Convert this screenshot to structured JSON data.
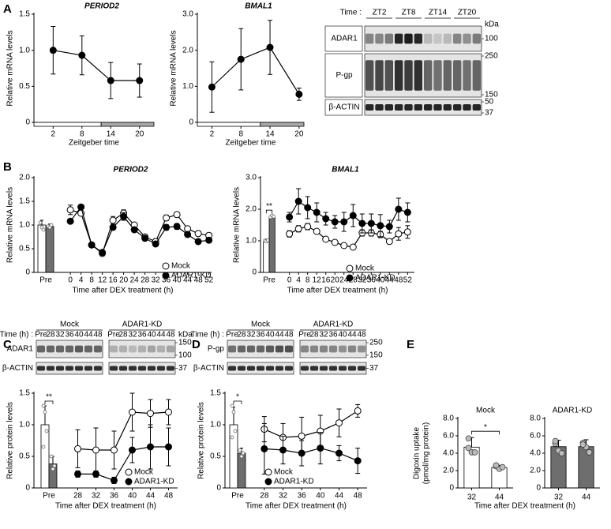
{
  "panels": [
    "A",
    "B",
    "C",
    "D",
    "E"
  ],
  "chart_data": [
    {
      "type": "line",
      "title": "PERIOD2",
      "ylabel": "Relative mRNA levels",
      "xlabel": "Zeitgeber time",
      "x": [
        2,
        8,
        14,
        20
      ],
      "xlim": [
        -2,
        23
      ],
      "xticks": [
        2,
        8,
        14,
        20
      ],
      "dark_period": [
        12,
        24
      ],
      "ylim": [
        0,
        1.5
      ],
      "yticks": [
        0,
        0.5,
        {
          "value": 1,
          "label": "1.0"
        },
        1.5
      ],
      "series": [
        {
          "marker": "filled",
          "color": "#000000",
          "values": [
            1.0,
            0.93,
            0.58,
            0.58
          ],
          "errors": [
            0.33,
            0.27,
            0.25,
            0.23
          ]
        }
      ]
    },
    {
      "type": "line",
      "title": "BMAL1",
      "ylabel": "Relative mRNA levels",
      "xlabel": "Zeitgeber time",
      "x": [
        2,
        8,
        14,
        20
      ],
      "xlim": [
        -1,
        21
      ],
      "xticks": [
        2,
        8,
        14,
        20
      ],
      "dark_period": [
        12,
        24
      ],
      "ylim": [
        0,
        3
      ],
      "yticks": [
        0,
        {
          "value": 1,
          "label": "1.0"
        },
        {
          "value": 2,
          "label": "2.0"
        },
        {
          "value": 3,
          "label": "3.0"
        }
      ],
      "series": [
        {
          "marker": "filled",
          "color": "#000000",
          "values": [
            0.98,
            1.75,
            2.08,
            0.78
          ],
          "errors": [
            0.7,
            0.85,
            0.75,
            0.17
          ]
        }
      ]
    },
    {
      "type": "line",
      "title": "PERIOD2",
      "ylabel": "Relative mRNA levels",
      "xlabel": "Time after DEX treatment (h)",
      "pre_label": "Pre",
      "x": [
        0,
        4,
        8,
        12,
        16,
        20,
        24,
        28,
        32,
        36,
        40,
        44,
        48,
        52
      ],
      "xlim": [
        -3,
        53
      ],
      "xticks": [
        0,
        4,
        8,
        12,
        16,
        20,
        24,
        28,
        32,
        36,
        40,
        44,
        48,
        52
      ],
      "ylim": [
        0,
        2
      ],
      "yticks": [
        0,
        0.5,
        {
          "value": 1,
          "label": "1.0"
        },
        1.5,
        {
          "value": 2,
          "label": "2.0"
        }
      ],
      "legend": "lower right",
      "series": [
        {
          "name": "Mock",
          "marker": "open",
          "color": "#ffffff",
          "pre": 1.0,
          "pre_error": 0.1,
          "pre_points": [
            1.05,
            0.95,
            0.9
          ],
          "values": [
            1.32,
            1.25,
            0.58,
            0.4,
            1.1,
            1.25,
            1.0,
            0.75,
            0.65,
            1.15,
            1.22,
            0.92,
            0.82,
            0.78
          ],
          "errors": [
            0.1,
            0.05,
            0.05,
            0.04,
            0.08,
            0.07,
            0.05,
            0.05,
            0.06,
            0.06,
            0.05,
            0.05,
            0.05,
            0.05
          ]
        },
        {
          "name": "ADAR1-KD",
          "marker": "filled",
          "color": "#6e6e6e",
          "pre": 0.97,
          "pre_error": 0.05,
          "pre_points": [
            0.97,
            0.95,
            1.0
          ],
          "values": [
            1.08,
            1.38,
            0.58,
            0.42,
            0.95,
            1.18,
            0.9,
            0.72,
            0.6,
            0.95,
            0.97,
            0.8,
            0.65,
            0.68
          ],
          "errors": [
            0.05,
            0.05,
            0.05,
            0.04,
            0.05,
            0.08,
            0.05,
            0.05,
            0.05,
            0.06,
            0.06,
            0.05,
            0.05,
            0.05
          ]
        }
      ]
    },
    {
      "type": "line",
      "title": "BMAL1",
      "ylabel": "Relative mRNA levels",
      "xlabel": "Time after DEX treatment (h)",
      "pre_label": "Pre",
      "significance": "**",
      "x": [
        0,
        4,
        8,
        12,
        16,
        20,
        24,
        28,
        32,
        36,
        40,
        44,
        48,
        52
      ],
      "xlim": [
        -3,
        55
      ],
      "xticks": [
        0,
        4,
        8,
        12,
        16,
        20,
        24,
        28,
        32,
        36,
        40,
        44,
        48,
        52
      ],
      "ylim": [
        0,
        3
      ],
      "yticks": [
        0,
        {
          "value": 1,
          "label": "1.0"
        },
        {
          "value": 2,
          "label": "2.0"
        },
        {
          "value": 3,
          "label": "3.0"
        }
      ],
      "legend": "lower right",
      "series": [
        {
          "name": "Mock",
          "marker": "open",
          "color": "#ffffff",
          "pre": 1.0,
          "pre_error": 0.05,
          "pre_points": [
            1.0,
            0.98,
            1.02
          ],
          "values": [
            1.22,
            1.38,
            1.45,
            1.3,
            1.05,
            0.95,
            0.85,
            0.8,
            1.25,
            1.25,
            1.2,
            0.98,
            1.22,
            1.28
          ],
          "errors": [
            0.1,
            0.1,
            0.1,
            0.05,
            0.05,
            0.05,
            0.05,
            0.05,
            0.1,
            0.1,
            0.1,
            0.05,
            0.2,
            0.2
          ]
        },
        {
          "name": "ADAR1-KD",
          "marker": "filled",
          "color": "#6e6e6e",
          "pre": 1.77,
          "pre_error": 0.05,
          "pre_points": [
            1.75,
            1.8,
            1.77
          ],
          "values": [
            1.75,
            2.25,
            2.05,
            1.9,
            1.7,
            1.6,
            1.6,
            1.8,
            1.55,
            1.55,
            1.48,
            1.45,
            2.0,
            1.9
          ],
          "errors": [
            0.15,
            0.4,
            0.35,
            0.3,
            0.2,
            0.2,
            0.3,
            0.35,
            0.3,
            0.3,
            0.35,
            0.2,
            0.35,
            0.3
          ]
        }
      ]
    },
    {
      "type": "line",
      "ylabel": "Relative protein levels",
      "xlabel": "Time after DEX treatment (h)",
      "pre_label": "Pre",
      "significance": "**",
      "x": [
        28,
        32,
        36,
        40,
        44,
        48
      ],
      "xlim": [
        26,
        50
      ],
      "xticks": [
        28,
        32,
        36,
        40,
        44,
        48
      ],
      "ylim": [
        0,
        1.5
      ],
      "yticks": [
        0,
        0.5,
        {
          "value": 1,
          "label": "1.0"
        },
        1.5
      ],
      "legend": "lower right",
      "series": [
        {
          "name": "Mock",
          "marker": "open",
          "color": "#ffffff",
          "pre": 1.0,
          "pre_error": 0.3,
          "pre_points": [
            1.3,
            1.2,
            0.9,
            0.65
          ],
          "values": [
            0.62,
            0.6,
            0.6,
            1.2,
            1.18,
            1.2
          ],
          "errors": [
            0.3,
            0.35,
            0.3,
            0.3,
            0.22,
            0.2
          ]
        },
        {
          "name": "ADAR1-KD",
          "marker": "filled",
          "color": "#6e6e6e",
          "pre": 0.38,
          "pre_error": 0.12,
          "pre_points": [
            0.5,
            0.3,
            0.35
          ],
          "values": [
            0.22,
            0.22,
            0.12,
            0.6,
            0.65,
            0.65
          ],
          "errors": [
            0.05,
            0.05,
            0.05,
            0.2,
            0.35,
            0.3
          ]
        }
      ]
    },
    {
      "type": "line",
      "ylabel": "Relative protein levels",
      "xlabel": "Time after DEX treatment (h)",
      "pre_label": "Pre",
      "significance": "*",
      "x": [
        28,
        32,
        36,
        40,
        44,
        48
      ],
      "xlim": [
        26,
        50
      ],
      "xticks": [
        28,
        32,
        36,
        40,
        44,
        48
      ],
      "ylim": [
        0,
        1.5
      ],
      "yticks": [
        0,
        0.5,
        {
          "value": 1,
          "label": "1.0"
        },
        1.5
      ],
      "legend": "lower left",
      "series": [
        {
          "name": "Mock",
          "marker": "open",
          "color": "#ffffff",
          "pre": 1.0,
          "pre_error": 0.28,
          "pre_points": [
            1.3,
            1.2,
            0.9,
            0.8
          ],
          "values": [
            0.93,
            0.8,
            0.82,
            0.9,
            1.03,
            1.22
          ],
          "errors": [
            0.2,
            0.22,
            0.3,
            0.25,
            0.22,
            0.1
          ]
        },
        {
          "name": "ADAR1-KD",
          "marker": "filled",
          "color": "#6e6e6e",
          "pre": 0.55,
          "pre_error": 0.08,
          "pre_points": [
            0.6,
            0.5,
            0.55
          ],
          "values": [
            0.62,
            0.6,
            0.55,
            0.63,
            0.55,
            0.43
          ],
          "errors": [
            0.4,
            0.22,
            0.2,
            0.25,
            0.12,
            0.2
          ]
        }
      ]
    },
    {
      "type": "bar",
      "title": "Mock",
      "ylabel": [
        "Digoxin uptake",
        "(pmol/mg protein)"
      ],
      "xlabel": "Time after DEX treatment (h)",
      "significance": "*",
      "categories": [
        32,
        44
      ],
      "values": [
        4.7,
        2.35
      ],
      "errors": [
        1.1,
        0.25
      ],
      "points": [
        [
          5.7,
          4.1,
          4.1,
          4.6
        ],
        [
          2.5,
          2.2,
          2.4,
          2.6
        ]
      ],
      "color": "#ffffff",
      "ylim": [
        0,
        8
      ],
      "yticks": [
        0,
        {
          "value": 2,
          "label": "2.0"
        },
        {
          "value": 4,
          "label": "4.0"
        },
        {
          "value": 6,
          "label": "6.0"
        },
        {
          "value": 8,
          "label": "8.0"
        }
      ]
    },
    {
      "type": "bar",
      "title": "ADAR1-KD",
      "categories": [
        32,
        44
      ],
      "values": [
        4.75,
        4.75
      ],
      "errors": [
        0.75,
        0.8
      ],
      "points": [
        [
          5.1,
          4.3,
          4.0,
          5.4
        ],
        [
          5.2,
          4.7,
          4.1,
          5.0
        ]
      ],
      "color": "#6e6e6e",
      "ylim": [
        0,
        8
      ],
      "yticks": [
        0,
        {
          "value": 2,
          "label": "2.0"
        },
        {
          "value": 4,
          "label": "4.0"
        },
        {
          "value": 6,
          "label": "6.0"
        },
        {
          "value": 8,
          "label": "8.0"
        }
      ]
    }
  ],
  "blots": [
    {
      "time_label": "Time :",
      "unit": "kDa",
      "groups": [
        {
          "lanes": [
            "ZT2",
            "ZT8",
            "ZT14",
            "ZT20"
          ]
        }
      ],
      "rows": [
        {
          "name": "ADAR1",
          "markers": [
            100
          ]
        },
        {
          "name": "P-gp",
          "markers": [
            250,
            150
          ]
        },
        {
          "name": "β-ACTIN",
          "markers": [
            50,
            37
          ]
        }
      ]
    },
    {
      "time_label": "Time (h) :",
      "unit": "kDa",
      "groups": [
        {
          "name": "Mock",
          "lanes": [
            "Pre",
            "28",
            "32",
            "36",
            "40",
            "44",
            "48"
          ]
        },
        {
          "name": "ADAR1-KD",
          "lanes": [
            "Pre",
            "28",
            "32",
            "36",
            "40",
            "44",
            "48"
          ]
        }
      ],
      "rows": [
        {
          "name": "ADAR1",
          "markers": [
            150,
            100
          ]
        },
        {
          "name": "β-ACTIN",
          "markers": [
            37
          ]
        }
      ]
    },
    {
      "time_label": "Time (h) :",
      "groups": [
        {
          "name": "Mock",
          "lanes": [
            "Pre",
            "28",
            "32",
            "36",
            "40",
            "44",
            "48"
          ]
        },
        {
          "name": "ADAR1-KD",
          "lanes": [
            "Pre",
            "28",
            "32",
            "36",
            "40",
            "44",
            "48"
          ]
        }
      ],
      "rows": [
        {
          "name": "P-gp",
          "markers": [
            250,
            150
          ]
        },
        {
          "name": "β-ACTIN",
          "markers": [
            37
          ]
        }
      ]
    }
  ]
}
